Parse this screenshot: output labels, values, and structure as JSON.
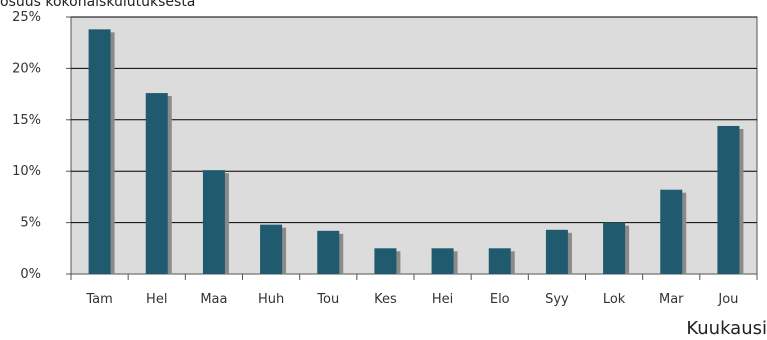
{
  "chart_data": {
    "type": "bar",
    "ylabel": "osuus kokonaiskulutuksesta",
    "xlabel": "Kuukausi",
    "categories": [
      "Tam",
      "Hel",
      "Maa",
      "Huh",
      "Tou",
      "Kes",
      "Hei",
      "Elo",
      "Syy",
      "Lok",
      "Mar",
      "Jou"
    ],
    "values": [
      23.8,
      17.6,
      10.1,
      4.8,
      4.2,
      2.5,
      2.5,
      2.5,
      4.3,
      5.0,
      8.2,
      14.4
    ],
    "ylim": [
      0,
      25
    ],
    "yticks": [
      "0%",
      "5%",
      "10%",
      "15%",
      "20%",
      "25%"
    ],
    "grid": true,
    "colors": {
      "bar": "#1F5A6E",
      "shadow": "#8A8A8A",
      "plot_bg": "#DCDCDC"
    }
  }
}
